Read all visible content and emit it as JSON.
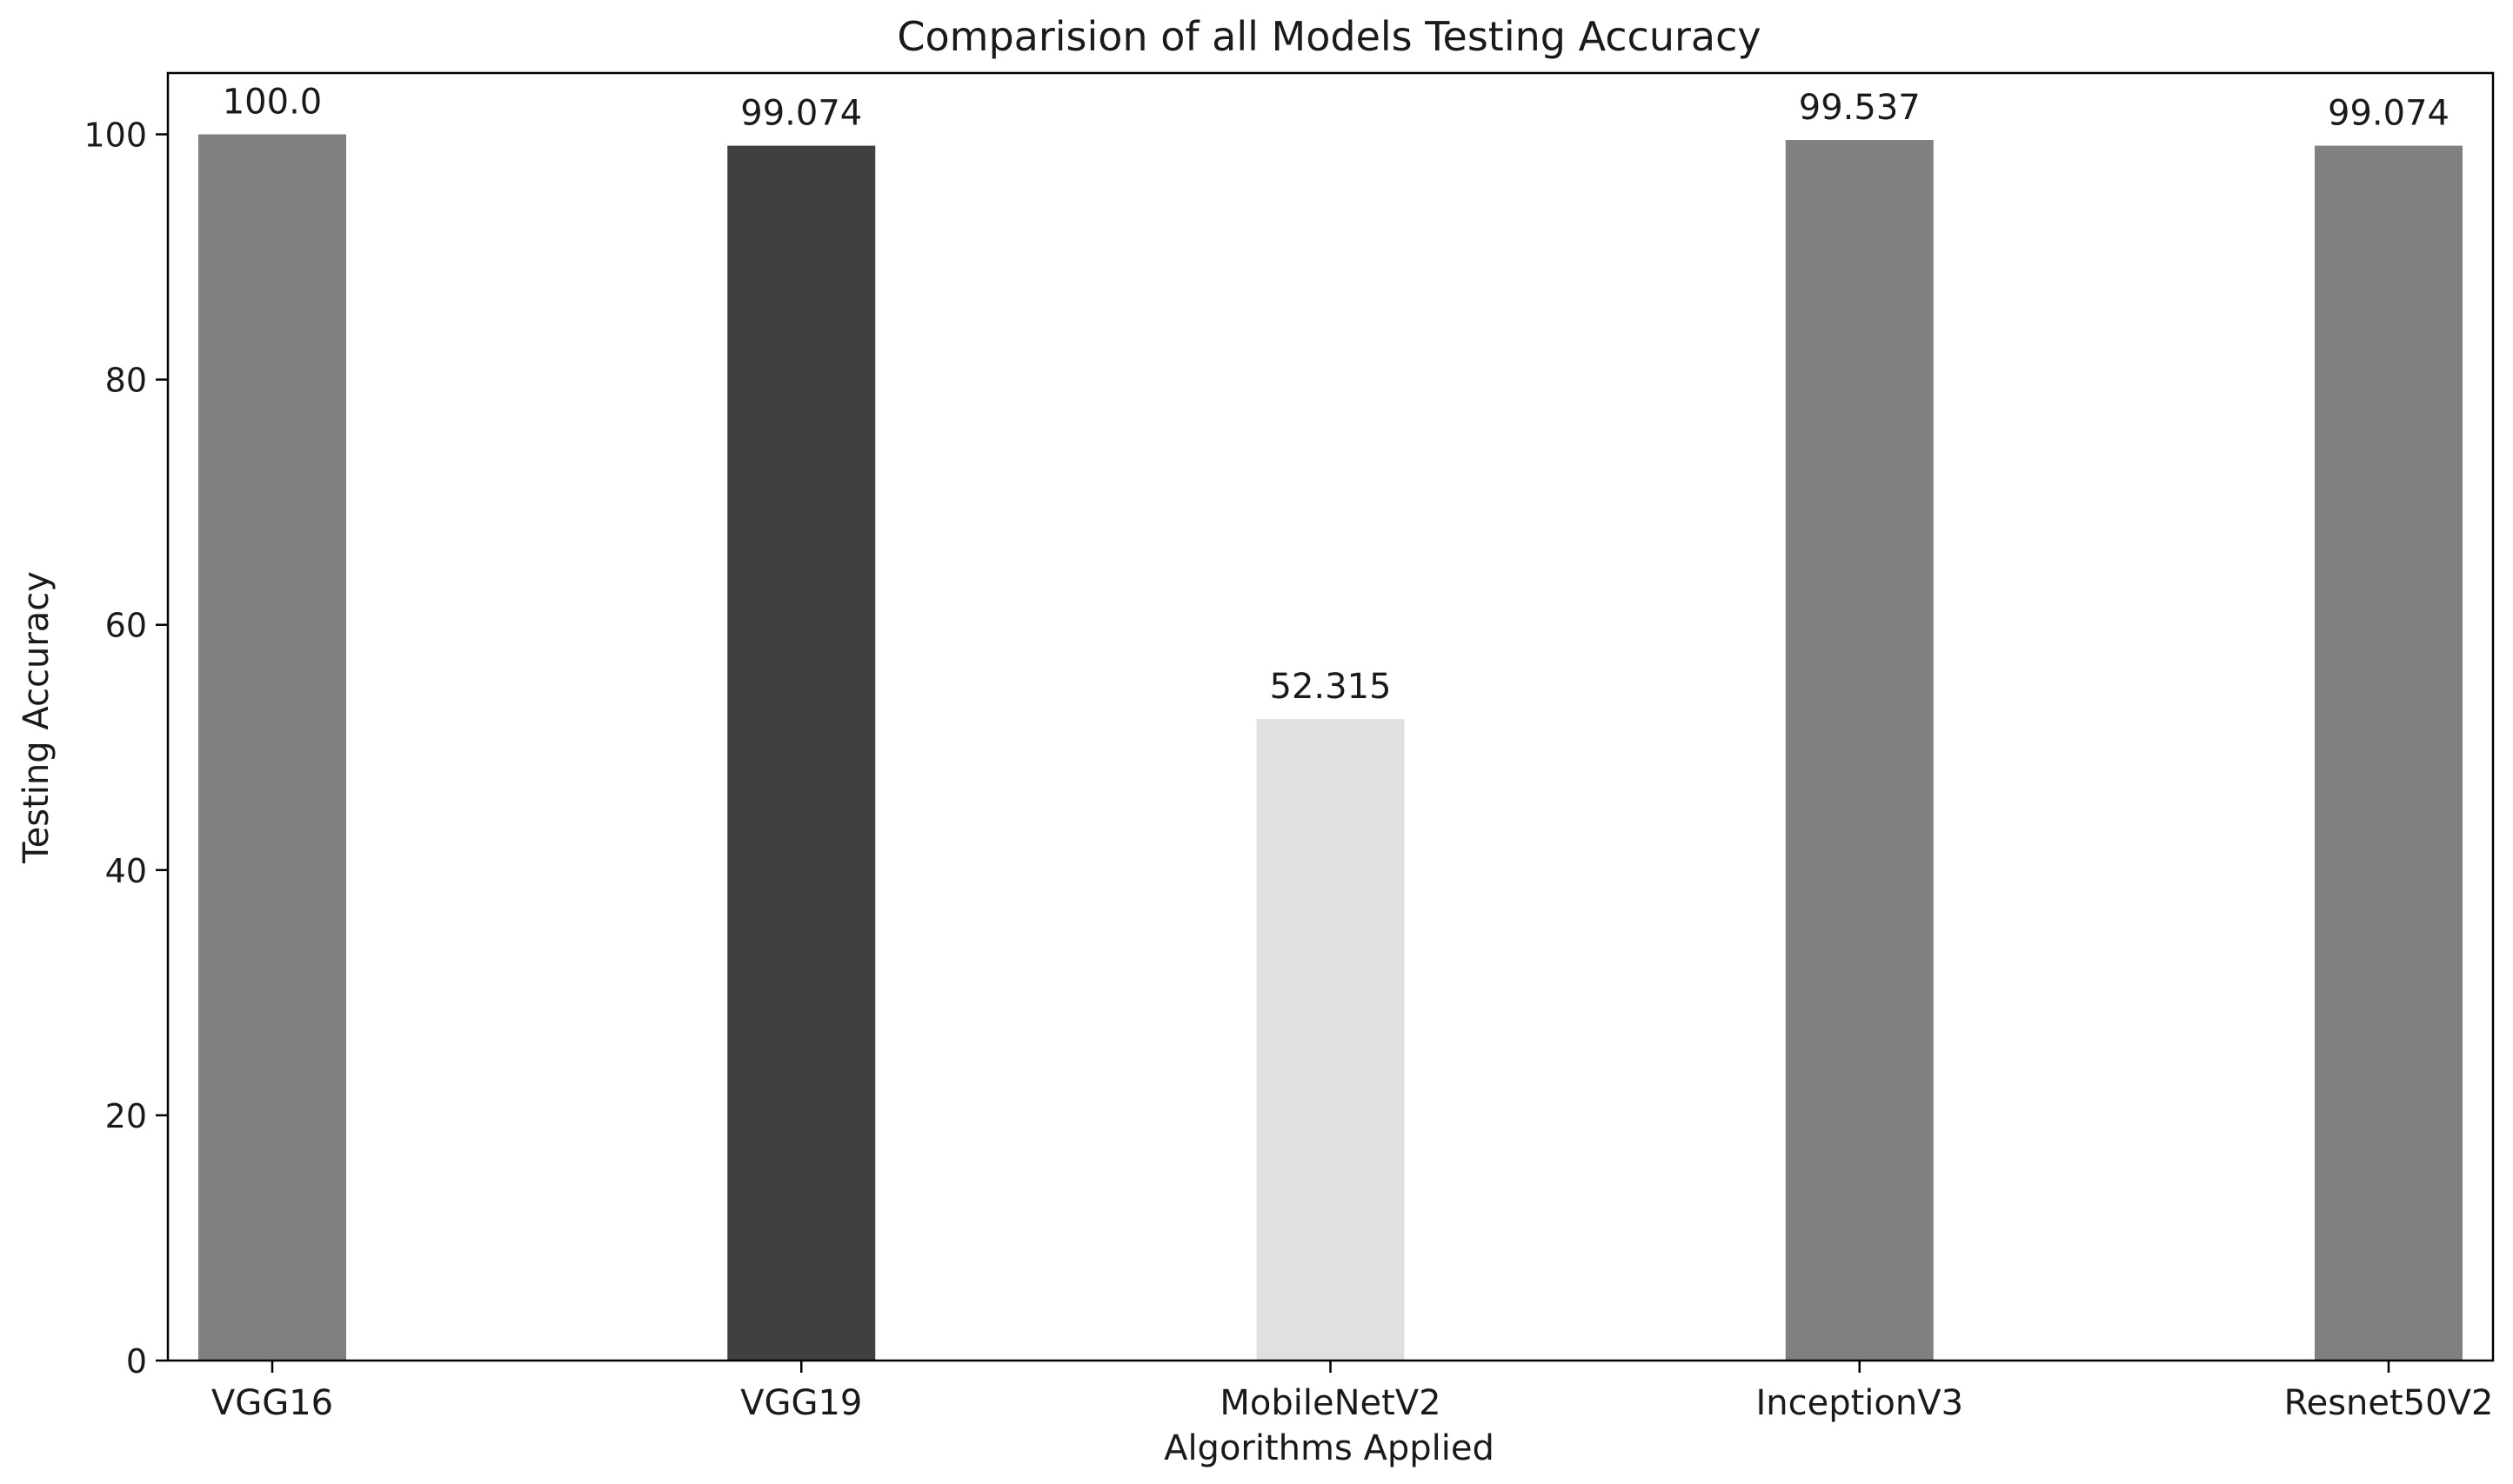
{
  "chart_data": {
    "type": "bar",
    "title": "Comparision of all Models Testing Accuracy",
    "xlabel": "Algorithms Applied",
    "ylabel": "Testing Accuracy",
    "categories": [
      "VGG16",
      "VGG19",
      "MobileNetV2",
      "InceptionV3",
      "Resnet50V2"
    ],
    "values": [
      100.0,
      99.074,
      52.315,
      99.537,
      99.074
    ],
    "value_labels": [
      "100.0",
      "99.074",
      "52.315",
      "99.537",
      "99.074"
    ],
    "bar_colors": [
      "#808080",
      "#404040",
      "#e0e0e0",
      "#808080",
      "#808080"
    ],
    "ylim": [
      0,
      105
    ],
    "yticks": [
      0,
      20,
      40,
      60,
      80,
      100
    ],
    "grid": false,
    "legend": null
  }
}
